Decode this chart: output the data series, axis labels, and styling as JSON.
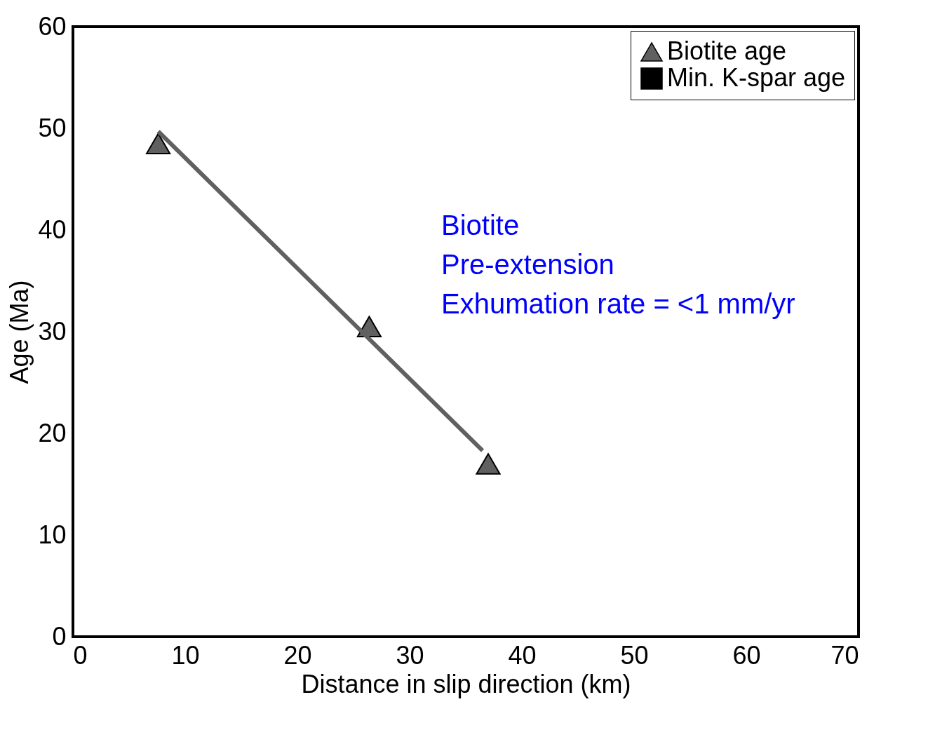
{
  "chart_data": {
    "type": "scatter",
    "xlabel": "Distance in slip direction (km)",
    "ylabel": "Age (Ma)",
    "xlim": [
      0,
      70
    ],
    "ylim": [
      0,
      60
    ],
    "xticks": [
      0,
      10,
      20,
      30,
      40,
      50,
      60,
      70
    ],
    "yticks": [
      0,
      10,
      20,
      30,
      40,
      50,
      60
    ],
    "grid": false,
    "legend": "top right",
    "series": [
      {
        "name": "Biotite age",
        "type": "scatter",
        "marker": "triangle",
        "color": "#606060",
        "x": [
          7.6,
          26.4,
          37.0
        ],
        "values": [
          48.5,
          30.5,
          17.0
        ]
      },
      {
        "name": "Min. K-spar age",
        "type": "scatter",
        "marker": "square",
        "color": "#000000"
      },
      {
        "type": "line",
        "color": "#606060",
        "x": [
          7.6,
          36.5
        ],
        "values": [
          49.7,
          18.3
        ]
      }
    ],
    "annotations": [
      "Biotite",
      "Pre-extension",
      "Exhumation rate = <1 mm/yr"
    ]
  }
}
